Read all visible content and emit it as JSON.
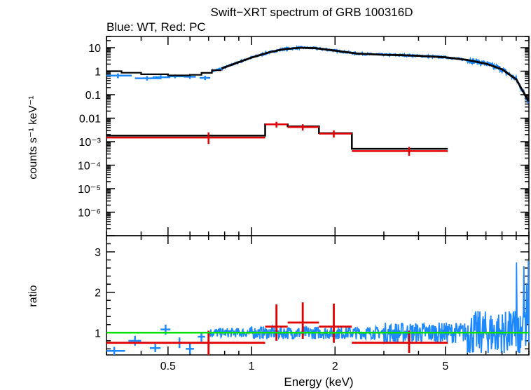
{
  "colors": {
    "wt": "#1e88ff",
    "pc": "#e00000",
    "model": "#000000",
    "unity": "#00e000",
    "axis": "#000000"
  },
  "chart_data": [
    {
      "type": "line",
      "panel": "spectrum",
      "title": "Swift−XRT spectrum of GRB 100316D",
      "subtitle": "Blue: WT, Red: PC",
      "xlabel": "Energy (keV)",
      "ylabel": "counts s⁻¹ keV⁻¹",
      "xscale": "log",
      "yscale": "log",
      "xlim": [
        0.3,
        10
      ],
      "ylim": [
        1e-07,
        30
      ],
      "xticks": [
        {
          "v": 0.5,
          "label": "0.5"
        },
        {
          "v": 1,
          "label": "1"
        },
        {
          "v": 2,
          "label": "2"
        },
        {
          "v": 5,
          "label": "5"
        }
      ],
      "yticks": [
        {
          "v": 10,
          "label": "10"
        },
        {
          "v": 1,
          "label": "1"
        },
        {
          "v": 0.1,
          "label": "0.1"
        },
        {
          "v": 0.01,
          "label": "0.01"
        },
        {
          "v": 0.001,
          "label": "10⁻³"
        },
        {
          "v": 0.0001,
          "label": "10⁻⁴"
        },
        {
          "v": 1e-05,
          "label": "10⁻⁵"
        },
        {
          "v": 1e-06,
          "label": "10⁻⁶"
        }
      ],
      "series": [
        {
          "name": "WT model",
          "kind": "step",
          "points": [
            [
              0.3,
              1.0
            ],
            [
              0.33,
              0.9
            ],
            [
              0.36,
              0.8
            ],
            [
              0.4,
              0.72
            ],
            [
              0.45,
              0.66
            ],
            [
              0.5,
              0.62
            ],
            [
              0.55,
              0.62
            ],
            [
              0.6,
              0.66
            ],
            [
              0.65,
              0.75
            ],
            [
              0.7,
              0.9
            ],
            [
              0.78,
              1.3
            ],
            [
              0.88,
              2.2
            ],
            [
              1.0,
              3.8
            ],
            [
              1.15,
              6.2
            ],
            [
              1.3,
              8.6
            ],
            [
              1.5,
              10.0
            ],
            [
              1.7,
              9.5
            ],
            [
              2.0,
              7.5
            ],
            [
              2.4,
              5.6
            ],
            [
              3.0,
              5.0
            ],
            [
              3.5,
              4.8
            ],
            [
              4.0,
              4.5
            ],
            [
              5.0,
              3.9
            ],
            [
              6.0,
              3.0
            ],
            [
              7.0,
              2.1
            ],
            [
              8.0,
              1.2
            ],
            [
              9.0,
              0.45
            ],
            [
              10.0,
              0.05
            ]
          ]
        },
        {
          "name": "PC model",
          "kind": "step",
          "points": [
            [
              0.3,
              0.0018
            ],
            [
              1.12,
              0.0018
            ],
            [
              1.12,
              0.0055
            ],
            [
              1.35,
              0.0055
            ],
            [
              1.35,
              0.0045
            ],
            [
              1.75,
              0.0045
            ],
            [
              1.75,
              0.0023
            ],
            [
              2.3,
              0.0023
            ],
            [
              2.3,
              0.0005
            ],
            [
              5.1,
              0.0005
            ]
          ]
        },
        {
          "name": "WT data",
          "errorbars": [
            {
              "x": 0.33,
              "y": 0.65,
              "xerr": [
                0.3,
                0.37
              ],
              "yerr": [
                0.5,
                0.8
              ]
            },
            {
              "x": 0.42,
              "y": 0.5,
              "xerr": [
                0.38,
                0.47
              ],
              "yerr": [
                0.4,
                0.62
              ]
            },
            {
              "x": 0.47,
              "y": 0.55,
              "xerr": [
                0.44,
                0.51
              ],
              "yerr": [
                0.45,
                0.67
              ]
            },
            {
              "x": 0.53,
              "y": 0.6,
              "xerr": [
                0.5,
                0.57
              ],
              "yerr": [
                0.5,
                0.72
              ]
            },
            {
              "x": 0.6,
              "y": 0.58,
              "xerr": [
                0.57,
                0.63
              ],
              "yerr": [
                0.47,
                0.7
              ]
            },
            {
              "x": 0.68,
              "y": 0.52,
              "xerr": [
                0.65,
                0.71
              ],
              "yerr": [
                0.42,
                0.64
              ]
            }
          ],
          "noisy_trace": "dense WT data follow the WT model from 0.72 to 10 keV"
        },
        {
          "name": "PC data",
          "errorbars": [
            {
              "x": 0.7,
              "y": 0.0015,
              "xerr": [
                0.3,
                1.12
              ],
              "yerr": [
                0.0008,
                0.0025
              ]
            },
            {
              "x": 1.23,
              "y": 0.0055,
              "xerr": [
                1.12,
                1.35
              ],
              "yerr": [
                0.004,
                0.007
              ]
            },
            {
              "x": 1.53,
              "y": 0.0042,
              "xerr": [
                1.35,
                1.75
              ],
              "yerr": [
                0.003,
                0.0055
              ]
            },
            {
              "x": 1.98,
              "y": 0.0022,
              "xerr": [
                1.75,
                2.3
              ],
              "yerr": [
                0.0015,
                0.003
              ]
            },
            {
              "x": 3.7,
              "y": 0.0004,
              "xerr": [
                2.3,
                5.1
              ],
              "yerr": [
                0.00025,
                0.0006
              ]
            }
          ]
        }
      ]
    },
    {
      "type": "scatter",
      "panel": "ratio",
      "ylabel": "ratio",
      "xscale": "log",
      "yscale": "linear",
      "xlim": [
        0.3,
        10
      ],
      "ylim": [
        0.45,
        3.4
      ],
      "yticks": [
        {
          "v": 1,
          "label": "1"
        },
        {
          "v": 2,
          "label": "2"
        },
        {
          "v": 3,
          "label": "3"
        }
      ],
      "unity_line": 1.0,
      "series": [
        {
          "name": "WT ratio",
          "errorbars": [
            {
              "x": 0.32,
              "y": 0.55,
              "xerr": [
                0.3,
                0.35
              ],
              "yerr": [
                0.45,
                0.65
              ]
            },
            {
              "x": 0.38,
              "y": 0.8,
              "xerr": [
                0.36,
                0.4
              ],
              "yerr": [
                0.68,
                0.92
              ]
            },
            {
              "x": 0.45,
              "y": 0.62,
              "xerr": [
                0.43,
                0.47
              ],
              "yerr": [
                0.52,
                0.72
              ]
            },
            {
              "x": 0.49,
              "y": 1.08,
              "xerr": [
                0.47,
                0.51
              ],
              "yerr": [
                0.95,
                1.2
              ]
            },
            {
              "x": 0.55,
              "y": 0.75,
              "xerr": [
                0.53,
                0.57
              ],
              "yerr": [
                0.62,
                0.88
              ]
            },
            {
              "x": 0.6,
              "y": 0.6,
              "xerr": [
                0.58,
                0.62
              ],
              "yerr": [
                0.48,
                0.73
              ]
            },
            {
              "x": 0.66,
              "y": 0.9,
              "xerr": [
                0.64,
                0.68
              ],
              "yerr": [
                0.78,
                1.02
              ]
            }
          ],
          "noisy_trace": "dense WT ratio points scatter around 1.0 from 0.7 to 10 keV, spread growing above 5 keV (0.5 to 3.4)"
        },
        {
          "name": "PC ratio",
          "errorbars": [
            {
              "x": 0.7,
              "y": 0.75,
              "xerr": [
                0.3,
                1.12
              ],
              "yerr": [
                0.45,
                1.05
              ]
            },
            {
              "x": 1.23,
              "y": 1.15,
              "xerr": [
                1.12,
                1.35
              ],
              "yerr": [
                0.8,
                1.7
              ]
            },
            {
              "x": 1.53,
              "y": 1.25,
              "xerr": [
                1.35,
                1.75
              ],
              "yerr": [
                0.85,
                1.75
              ]
            },
            {
              "x": 1.98,
              "y": 1.15,
              "xerr": [
                1.75,
                2.3
              ],
              "yerr": [
                0.75,
                1.72
              ]
            },
            {
              "x": 3.7,
              "y": 0.75,
              "xerr": [
                2.3,
                5.1
              ],
              "yerr": [
                0.5,
                1.05
              ]
            }
          ]
        }
      ]
    }
  ]
}
